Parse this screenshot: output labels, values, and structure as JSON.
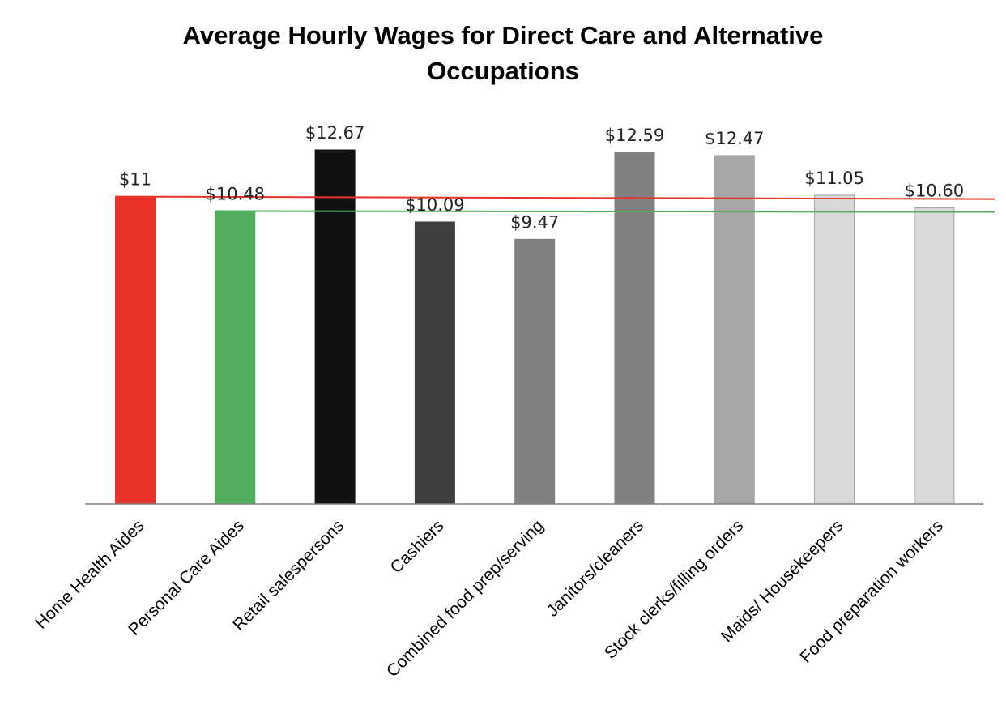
{
  "chart_data": {
    "type": "bar",
    "title_lines": [
      "Average Hourly Wages for Direct Care and Alternative",
      "Occupations"
    ],
    "categories": [
      "Home Health Aides",
      "Personal Care Aides",
      "Retail salespersons",
      "Cashiers",
      "Combined food prep/serving",
      "Janitors/cleaners",
      "Stock clerks/filling orders",
      "Maids/ Housekeepers",
      "Food preparation workers"
    ],
    "values": [
      11.0,
      10.48,
      12.67,
      10.09,
      9.47,
      12.59,
      12.47,
      11.05,
      10.6
    ],
    "data_labels": [
      "$11",
      "$10.48",
      "$12.67",
      "$10.09",
      "$9.47",
      "$12.59",
      "$12.47",
      "$11.05",
      "$10.60"
    ],
    "bar_colors": [
      "#e8322a",
      "#52ad5d",
      "#111111",
      "#404040",
      "#808080",
      "#808080",
      "#a6a6a6",
      "#d9d9d9",
      "#d9d9d9"
    ],
    "bar_outline_colors": [
      "#e8322a",
      "#52ad5d",
      "#111111",
      "#404040",
      "#808080",
      "#808080",
      "#a6a6a6",
      "#a0a0a0",
      "#a0a0a0"
    ],
    "reference_lines": [
      {
        "value": 11.0,
        "color": "#e8322a"
      },
      {
        "value": 10.48,
        "color": "#52ad5d"
      }
    ],
    "ylim": [
      0,
      12.67
    ],
    "xlabel": "",
    "ylabel": "",
    "grid": false,
    "legend": "none"
  }
}
